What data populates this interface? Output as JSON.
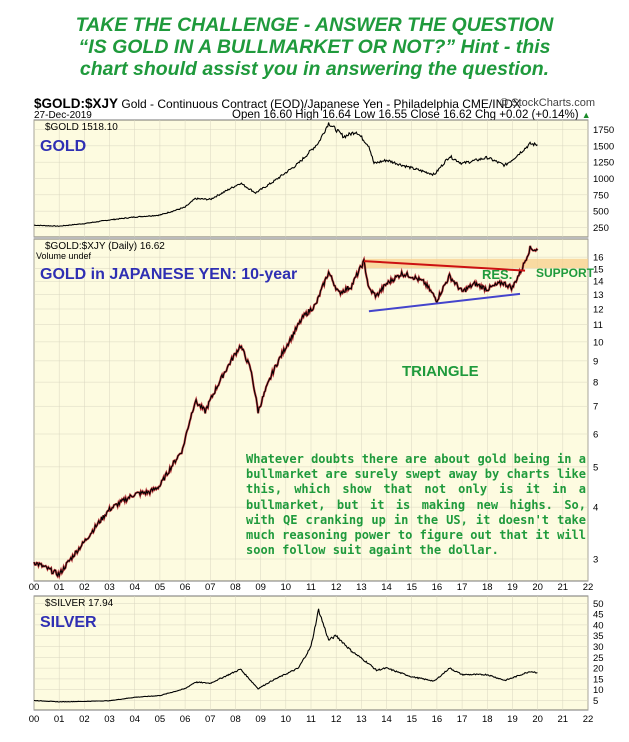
{
  "headline": {
    "line1": "TAKE THE CHALLENGE - ANSWER THE QUESTION",
    "line2": "“IS GOLD IN A BULLMARKET OR NOT?” Hint - this",
    "line3": "chart should assist you in answering the question."
  },
  "header": {
    "symbol": "$GOLD:$XJY",
    "description": "Gold - Continuous Contract (EOD)/Japanese Yen - Philadelphia CME/INDX",
    "source": "© StockCharts.com",
    "date": "27-Dec-2019",
    "ohlc_text": "Open 16.60  High 16.64  Low 16.55  Close 16.62  Chg +0.02 (+0.14%)",
    "ohlc_marker": "▲"
  },
  "panels": {
    "gold": {
      "legend": "$GOLD 1518.10",
      "title": "GOLD"
    },
    "xjy": {
      "legend": "$GOLD:$XJY (Daily) 16.62",
      "volume": "Volume undef",
      "title": "GOLD in JAPANESE YEN: 10-year"
    },
    "silver": {
      "legend": "$SILVER 17.94",
      "title": "SILVER"
    }
  },
  "annotations": {
    "res": "RES.",
    "support": "SUPPORT",
    "triangle": "TRIANGLE",
    "commentary": "Whatever doubts there are about gold being in a bullmarket are surely swept away by charts like this, which show that not only is it in a bullmarket, but it is making new highs. So, with QE cranking up in the US, it doesn't take much reasoning power to figure out that it will soon follow suit againt the dollar."
  },
  "colors": {
    "panel_bg": "#fdfbe0",
    "headline": "#1f9a3c",
    "title_blue": "#2f2fb3",
    "res_line": "#cc1111",
    "support_band": "#f7cf8c",
    "triangle_line": "#4444cc"
  },
  "chart_data": [
    {
      "type": "line",
      "panel": "gold",
      "series": [
        {
          "name": "$GOLD",
          "x": [
            2000,
            2001,
            2002,
            2003,
            2004,
            2005,
            2006,
            2006.4,
            2007,
            2008.2,
            2008.8,
            2009.5,
            2010.5,
            2011.3,
            2011.7,
            2012.3,
            2012.8,
            2013.3,
            2013.5,
            2014,
            2015,
            2015.9,
            2016.5,
            2017,
            2018,
            2018.7,
            2019,
            2019.7,
            2019.99
          ],
          "y": [
            285,
            270,
            310,
            365,
            410,
            440,
            560,
            690,
            680,
            930,
            780,
            950,
            1230,
            1550,
            1850,
            1640,
            1720,
            1500,
            1230,
            1280,
            1160,
            1060,
            1340,
            1230,
            1320,
            1200,
            1290,
            1530,
            1518
          ]
        }
      ],
      "x_range": [
        2000,
        2022
      ],
      "y_ticks": [
        250,
        500,
        750,
        1000,
        1250,
        1500,
        1750
      ],
      "ylim": [
        150,
        1850
      ]
    },
    {
      "type": "line",
      "panel": "xjy",
      "series": [
        {
          "name": "$GOLD:$XJY",
          "x": [
            2000,
            2001,
            2002,
            2003,
            2004,
            2004.6,
            2005,
            2005.9,
            2006.4,
            2006.8,
            2007.5,
            2008.2,
            2008.6,
            2008.9,
            2009.5,
            2010.2,
            2010.7,
            2011.2,
            2011.7,
            2012.1,
            2012.6,
            2013.1,
            2013.3,
            2013.6,
            2014,
            2014.6,
            2015,
            2015.5,
            2016,
            2016.5,
            2017,
            2017.5,
            2018,
            2018.6,
            2019,
            2019.4,
            2019.7,
            2020
          ],
          "y": [
            2.95,
            2.75,
            3.3,
            3.95,
            4.3,
            4.35,
            4.5,
            5.5,
            7.2,
            6.8,
            8.3,
            9.8,
            8.6,
            6.8,
            8.5,
            10.2,
            11.5,
            12.3,
            14.7,
            13.1,
            13.6,
            15.6,
            13.4,
            12.9,
            13.8,
            14.6,
            14.4,
            13.9,
            12.6,
            14.4,
            13.2,
            13.8,
            13.4,
            13.9,
            13.5,
            15.1,
            16.8,
            16.62
          ]
        }
      ],
      "x_range": [
        2000,
        2022
      ],
      "y_ticks": [
        3,
        4,
        5,
        6,
        7,
        8,
        9,
        10,
        11,
        12,
        13,
        14,
        15,
        16
      ],
      "y_scale": "log",
      "ylim": [
        2.7,
        17.4
      ],
      "x_tick_labels": [
        "00",
        "01",
        "02",
        "03",
        "04",
        "05",
        "06",
        "07",
        "08",
        "09",
        "10",
        "11",
        "12",
        "13",
        "14",
        "15",
        "16",
        "17",
        "18",
        "19",
        "20",
        "21",
        "22"
      ]
    },
    {
      "type": "line",
      "panel": "silver",
      "series": [
        {
          "name": "$SILVER",
          "x": [
            2000,
            2001,
            2002,
            2003,
            2004,
            2005,
            2006,
            2006.4,
            2007,
            2008.2,
            2008.9,
            2009.5,
            2010.5,
            2011.0,
            2011.3,
            2011.7,
            2012,
            2012.6,
            2013.3,
            2013.6,
            2014,
            2015,
            2015.9,
            2016.5,
            2017,
            2018,
            2018.7,
            2019,
            2019.7,
            2019.99
          ],
          "y": [
            5,
            4.4,
            4.6,
            4.9,
            6.5,
            7.3,
            10.5,
            13.5,
            13,
            19.5,
            10.5,
            14.5,
            20,
            30,
            47,
            33,
            35,
            28,
            22,
            19,
            20,
            16,
            14,
            20,
            17,
            17,
            14.3,
            15.5,
            18.5,
            17.94
          ]
        }
      ],
      "x_range": [
        2000,
        2022
      ],
      "y_ticks": [
        5,
        10,
        15,
        20,
        25,
        30,
        35,
        40,
        45,
        50
      ],
      "ylim": [
        2,
        52
      ]
    }
  ]
}
